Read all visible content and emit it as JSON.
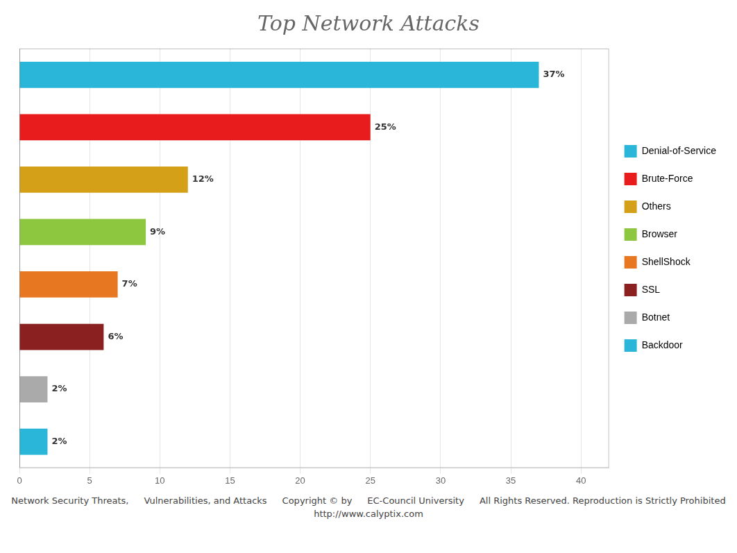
{
  "chart_data": {
    "type": "bar",
    "orientation": "horizontal",
    "title": "Top Network Attacks",
    "categories": [
      "Denial-of-Service",
      "Brute-Force",
      "Others",
      "Browser",
      "ShellShock",
      "SSL",
      "Botnet",
      "Backdoor"
    ],
    "values": [
      37,
      25,
      12,
      9,
      7,
      6,
      2,
      2
    ],
    "value_labels": [
      "37%",
      "25%",
      "12%",
      "9%",
      "7%",
      "6%",
      "2%",
      "2%"
    ],
    "data_labels": true,
    "colors": [
      "#29b6d8",
      "#e81c1c",
      "#d4a017",
      "#8dc63f",
      "#e87722",
      "#8b2020",
      "#aaaaaa",
      "#29b6d8"
    ],
    "xlim": [
      0,
      42
    ],
    "xticks": [
      0,
      5,
      10,
      15,
      20,
      25,
      30,
      35,
      40
    ],
    "grid": true,
    "legend": "right",
    "tick_labels": "x",
    "annotations": [
      "Network Security Threats,",
      "Vulnerabilities, and Attacks",
      "Copyright © by",
      "EC-Council University",
      "All Rights Reserved. Reproduction is Strictly Prohibited",
      "http://www.calyptix.com"
    ]
  }
}
